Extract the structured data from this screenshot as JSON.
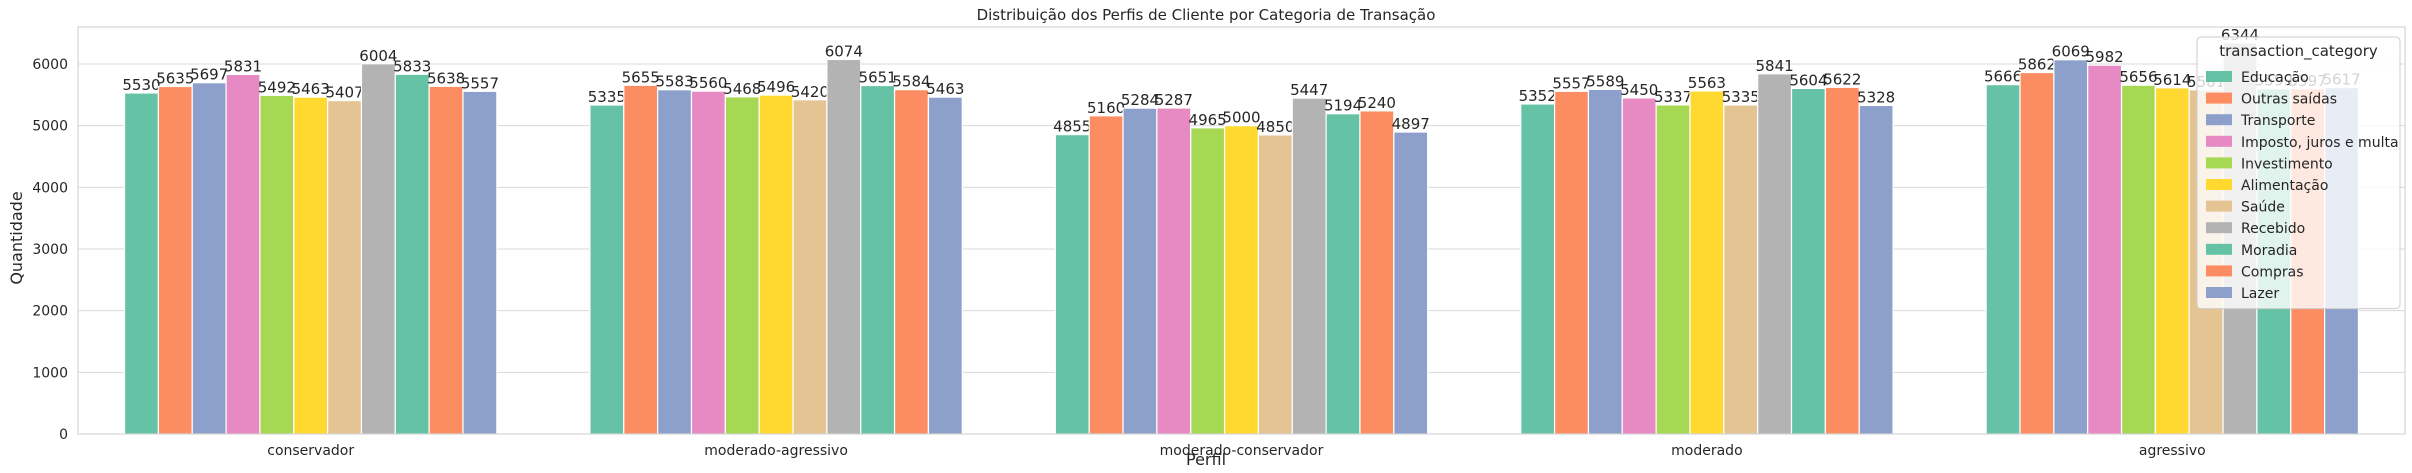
{
  "chart_data": {
    "type": "bar",
    "title": "Distribuição dos Perfis de Cliente por Categoria de Transação",
    "xlabel": "Perfil",
    "ylabel": "Quantidade",
    "ylim": [
      0,
      6600
    ],
    "yticks": [
      0,
      1000,
      2000,
      3000,
      4000,
      5000,
      6000
    ],
    "grid": "horizontal",
    "legend_title": "transaction_category",
    "legend_position": "top-right",
    "categories": [
      "conservador",
      "moderado-agressivo",
      "moderado-conservador",
      "moderado",
      "agressivo"
    ],
    "series": [
      {
        "name": "Educação",
        "color": "#66c2a5",
        "values": [
          5530,
          5335,
          4855,
          5352,
          5666
        ]
      },
      {
        "name": "Outras saídas",
        "color": "#fc8d62",
        "values": [
          5635,
          5655,
          5160,
          5557,
          5862
        ]
      },
      {
        "name": "Transporte",
        "color": "#8da0cb",
        "values": [
          5697,
          5583,
          5284,
          5589,
          6069
        ]
      },
      {
        "name": "Imposto, juros e multa",
        "color": "#e78ac3",
        "values": [
          5831,
          5560,
          5287,
          5450,
          5982
        ]
      },
      {
        "name": "Investimento",
        "color": "#a6d854",
        "values": [
          5492,
          5468,
          4965,
          5337,
          5656
        ]
      },
      {
        "name": "Alimentação",
        "color": "#ffd92f",
        "values": [
          5463,
          5496,
          5000,
          5563,
          5614
        ]
      },
      {
        "name": "Saúde",
        "color": "#e5c494",
        "values": [
          5407,
          5420,
          4850,
          5335,
          5581
        ]
      },
      {
        "name": "Recebido",
        "color": "#b3b3b3",
        "values": [
          6004,
          6074,
          5447,
          5841,
          6344
        ]
      },
      {
        "name": "Moradia",
        "color": "#66c2a5",
        "values": [
          5833,
          5651,
          5194,
          5604,
          5599
        ]
      },
      {
        "name": "Compras",
        "color": "#fc8d62",
        "values": [
          5638,
          5584,
          5240,
          5622,
          5597
        ]
      },
      {
        "name": "Lazer",
        "color": "#8da0cb",
        "values": [
          5557,
          5463,
          4897,
          5328,
          5617
        ]
      }
    ]
  }
}
